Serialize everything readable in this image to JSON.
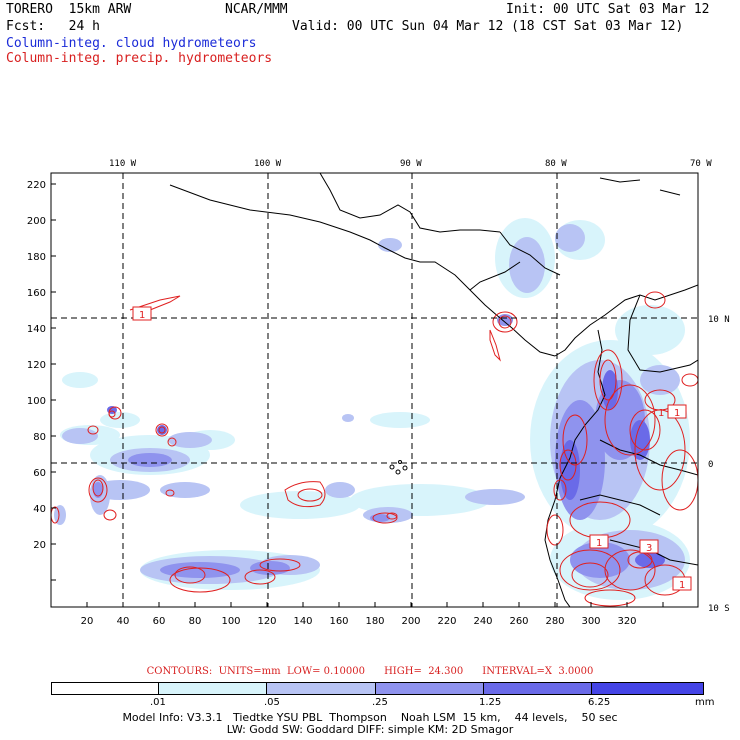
{
  "header": {
    "model": "TORERO  15km ARW",
    "org": "NCAR/MMM",
    "init": "Init: 00 UTC Sat 03 Mar 12",
    "fcst": "Fcst:   24 h",
    "valid": "Valid: 00 UTC Sun 04 Mar 12 (18 CST Sat 03 Mar 12)",
    "field1": "Column-integ. cloud hydrometeors",
    "field2": "Column-integ. precip. hydrometeors"
  },
  "colors": {
    "field1": "#1b2bd8",
    "field2": "#d82020",
    "legend": [
      "#ffffff",
      "#d8f4fb",
      "#b8c4f4",
      "#8f93ee",
      "#6a6ae8",
      "#4444e6",
      "#2424e4"
    ]
  },
  "map": {
    "lon_labels": [
      "110 W",
      "100 W",
      "90 W",
      "80 W",
      "70 W"
    ],
    "lat_labels": [
      "10 N",
      "0",
      "10 S"
    ],
    "y_ticks": [
      "220",
      "200",
      "180",
      "160",
      "140",
      "120",
      "100",
      "80",
      "60",
      "40",
      "20"
    ],
    "x_ticks": [
      "20",
      "40",
      "60",
      "80",
      "100",
      "120",
      "140",
      "160",
      "180",
      "200",
      "220",
      "240",
      "260",
      "280",
      "300",
      "320"
    ],
    "contour_boxes": [
      "1",
      "1",
      "1",
      "1",
      "3",
      "1"
    ]
  },
  "contour_info": "CONTOURS:  UNITS=mm  LOW= 0.10000      HIGH=  24.300      INTERVAL=X  3.0000",
  "legend": {
    "ticks": [
      ".01",
      ".05",
      ".25",
      "1.25",
      "6.25"
    ],
    "unit": "mm"
  },
  "model_info": {
    "line1": "Model Info: V3.3.1   Tiedtke YSU PBL  Thompson    Noah LSM  15 km,    44 levels,    50 sec",
    "line2": "LW: Godd SW: Goddard DIFF: simple KM: 2D Smagor"
  }
}
